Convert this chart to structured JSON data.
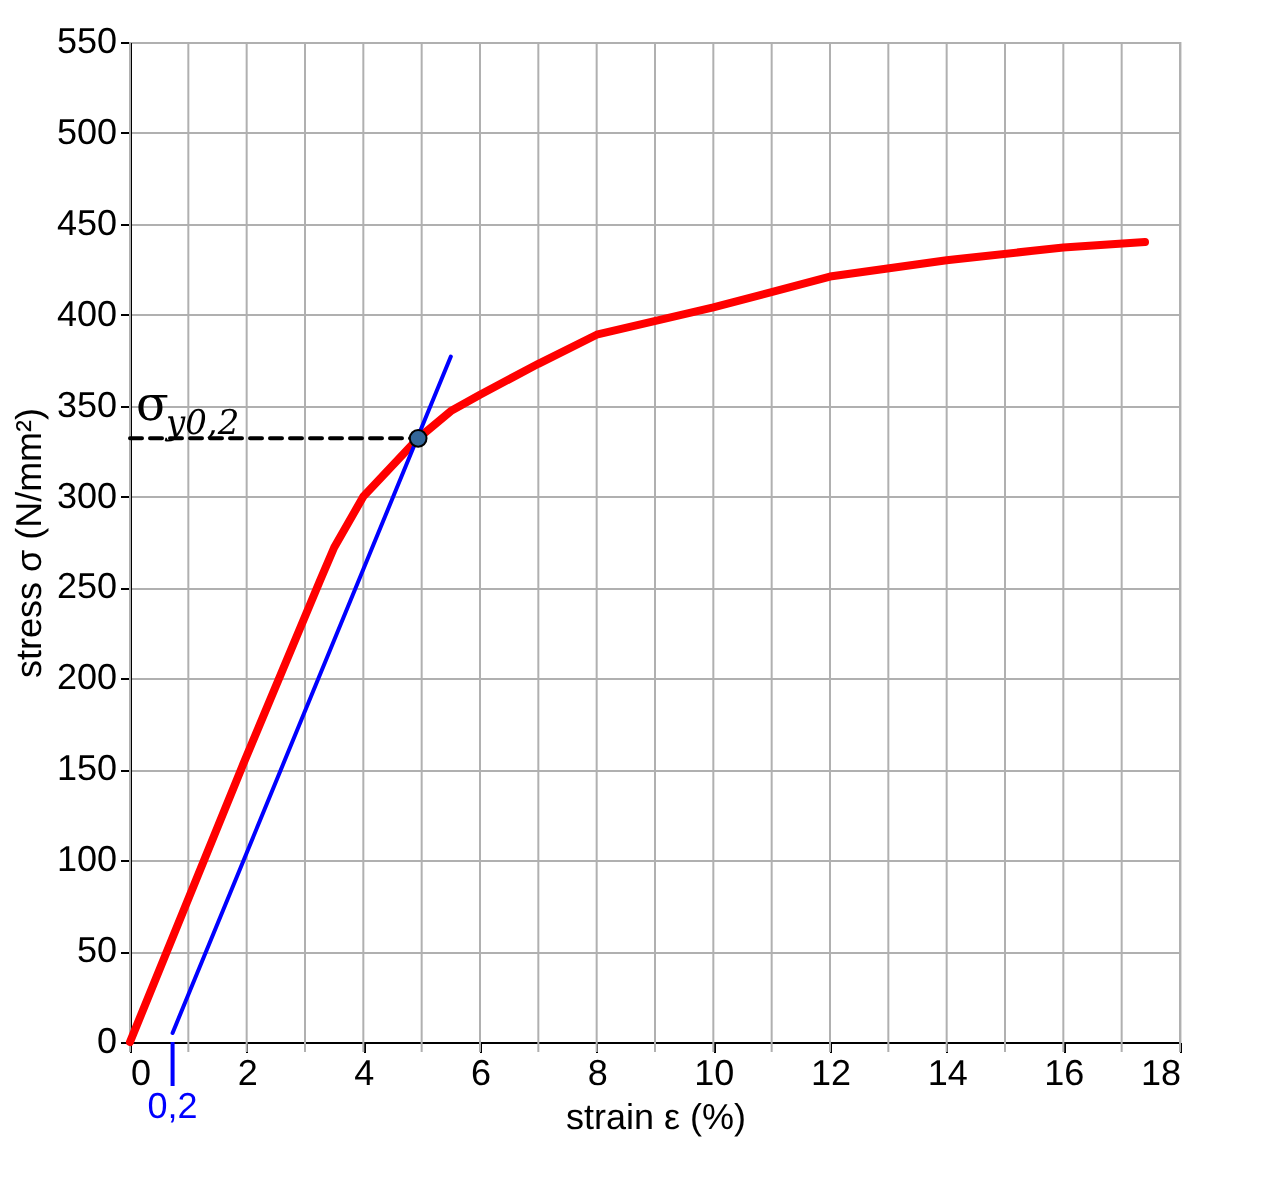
{
  "chart_data": {
    "type": "line",
    "xlabel": "strain ε (%)",
    "ylabel": "stress σ (N/mm²)",
    "xlim": [
      0,
      18
    ],
    "ylim": [
      0,
      550
    ],
    "xticks": [
      0,
      {
        "value": 1,
        "label": null
      },
      2,
      {
        "value": 3,
        "label": null
      },
      4,
      {
        "value": 5,
        "label": null
      },
      6,
      {
        "value": 7,
        "label": null
      },
      8,
      {
        "value": 9,
        "label": null
      },
      10,
      {
        "value": 11,
        "label": null
      },
      12,
      {
        "value": 13,
        "label": null
      },
      14,
      {
        "value": 15,
        "label": null
      },
      16,
      {
        "value": 17,
        "label": null
      },
      18
    ],
    "yticks": [
      0,
      50,
      100,
      150,
      200,
      250,
      300,
      350,
      400,
      450,
      500,
      550
    ],
    "grid": true,
    "marker": "none",
    "line_style": "solid",
    "series": [
      {
        "color": "#ff0000",
        "x": [
          0,
          1.93,
          3.26,
          3.5,
          4,
          4.94,
          5.5,
          6,
          7,
          8,
          10,
          12,
          14,
          16,
          17.4
        ],
        "values": [
          0,
          152,
          254,
          272,
          300,
          332,
          347,
          356,
          373,
          389,
          404,
          421,
          430,
          437,
          440
        ]
      },
      {
        "color": "#0000ff",
        "x": [
          0.73,
          5.5
        ],
        "values": [
          5,
          377
        ]
      },
      {
        "color": "#000000",
        "line_style": "dashed",
        "x": [
          0,
          4.94
        ],
        "values": [
          332,
          332
        ]
      },
      {
        "type": "scatter",
        "marker": "circle",
        "color": "#336699",
        "x": [
          4.94
        ],
        "values": [
          332
        ]
      }
    ],
    "annotations": [
      {
        "text": "σ$_{y0,2}$",
        "x": 0,
        "y": 332
      },
      {
        "text": "0,2",
        "x": 0.73,
        "y": 0
      }
    ]
  }
}
